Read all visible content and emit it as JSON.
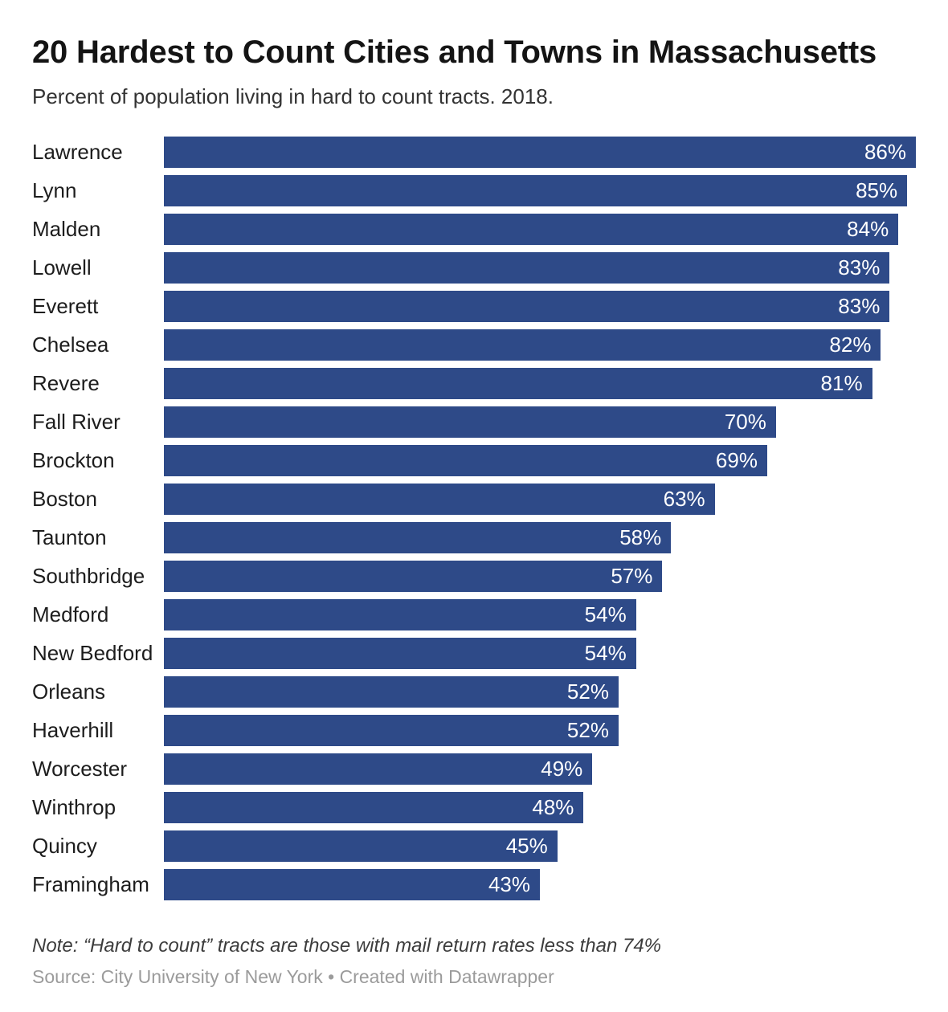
{
  "chart_data": {
    "type": "bar",
    "orientation": "horizontal",
    "title": "20 Hardest to Count Cities and Towns in Massachusetts",
    "subtitle": "Percent of population living in hard to count tracts. 2018.",
    "categories": [
      "Lawrence",
      "Lynn",
      "Malden",
      "Lowell",
      "Everett",
      "Chelsea",
      "Revere",
      "Fall River",
      "Brockton",
      "Boston",
      "Taunton",
      "Southbridge",
      "Medford",
      "New Bedford",
      "Orleans",
      "Haverhill",
      "Worcester",
      "Winthrop",
      "Quincy",
      "Framingham"
    ],
    "values": [
      86,
      85,
      84,
      83,
      83,
      82,
      81,
      70,
      69,
      63,
      58,
      57,
      54,
      54,
      52,
      52,
      49,
      48,
      45,
      43
    ],
    "value_labels": [
      "86%",
      "85%",
      "84%",
      "83%",
      "83%",
      "82%",
      "81%",
      "70%",
      "69%",
      "63%",
      "58%",
      "57%",
      "54%",
      "54%",
      "52%",
      "52%",
      "49%",
      "48%",
      "45%",
      "43%"
    ],
    "value_suffix": "%",
    "xlim": [
      0,
      86
    ],
    "grid": false,
    "legend": false,
    "bar_color": "#2E4A88",
    "value_label_color": "#FFFFFF",
    "label_color": "#1D1D1D"
  },
  "footer": {
    "note": "Note: “Hard to count” tracts are those with mail return rates less than 74%",
    "source": "Source: City University of New York • Created with Datawrapper"
  }
}
